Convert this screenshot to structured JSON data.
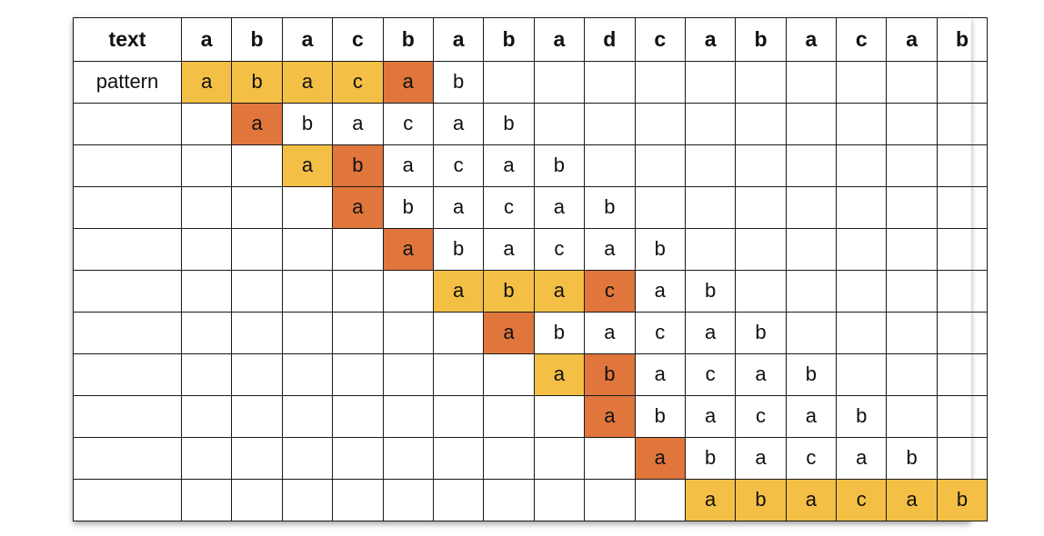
{
  "colors": {
    "match": "#f3bf45",
    "mismatch": "#e0763c",
    "border": "#1a1a1a",
    "background": "#ffffff"
  },
  "header_label": "text",
  "text_chars": [
    "a",
    "b",
    "a",
    "c",
    "b",
    "a",
    "b",
    "a",
    "d",
    "c",
    "a",
    "b",
    "a",
    "c",
    "a",
    "b"
  ],
  "pattern_label": "pattern",
  "pattern": [
    "a",
    "b",
    "a",
    "c",
    "a",
    "b"
  ],
  "total_rows": 11,
  "alignments": [
    {
      "shift": 0,
      "compared": 5,
      "mismatch": true
    },
    {
      "shift": 1,
      "compared": 1,
      "mismatch": true
    },
    {
      "shift": 2,
      "compared": 2,
      "mismatch": true
    },
    {
      "shift": 3,
      "compared": 1,
      "mismatch": true
    },
    {
      "shift": 4,
      "compared": 1,
      "mismatch": true
    },
    {
      "shift": 5,
      "compared": 4,
      "mismatch": true
    },
    {
      "shift": 6,
      "compared": 1,
      "mismatch": true
    },
    {
      "shift": 7,
      "compared": 2,
      "mismatch": true
    },
    {
      "shift": 8,
      "compared": 1,
      "mismatch": true
    },
    {
      "shift": 9,
      "compared": 1,
      "mismatch": true
    },
    {
      "shift": 10,
      "compared": 6,
      "mismatch": false
    }
  ]
}
